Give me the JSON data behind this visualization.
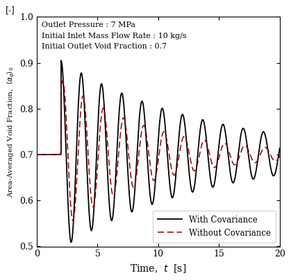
{
  "title_annotation": "[-]",
  "annotation_text": "Outlet Pressure : 7 MPa\nInitial Inlet Mass Flow Rate : 10 kg/s\nInitial Outlet Void Fraction : 0.7",
  "xlabel": "Time,  $t$  [s]",
  "ylabel": "Area-Averaged Void Fraction,  $\\langle\\alpha_g\\rangle_0$",
  "xlim": [
    0,
    20
  ],
  "ylim": [
    0.5,
    1.0
  ],
  "xticks": [
    0,
    5,
    10,
    15,
    20
  ],
  "yticks": [
    0.5,
    0.6,
    0.7,
    0.8,
    0.9,
    1.0
  ],
  "legend_entries": [
    "With Covariance",
    "Without Covariance"
  ],
  "legend_loc": "lower right",
  "background_color": "#ffffff",
  "line1_color": "#000000",
  "line2_color": "#8b0000",
  "line1_style": "-",
  "line2_style": "--",
  "t0": 2.0,
  "freq": 0.6,
  "amp0_cov": 0.205,
  "decay_cov": 0.085,
  "amp0_nocov": 0.165,
  "decay_nocov": 0.14,
  "phase_nocov": 0.55,
  "step_time": 2.0,
  "step_rise": 0.3
}
